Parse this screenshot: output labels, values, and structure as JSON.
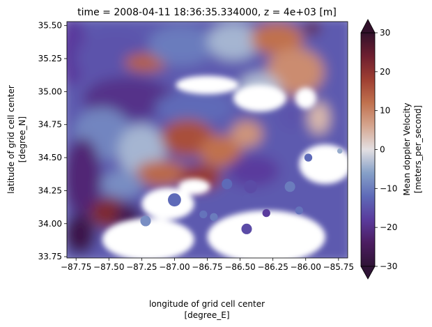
{
  "chart_data": {
    "type": "heatmap",
    "title": "time = 2008-04-11 18:36:35.334000, z = 4e+03 [m]",
    "xlabel": [
      "longitude of grid cell center",
      "[degree_E]"
    ],
    "ylabel": [
      "latitude of grid cell center",
      "[degree_N]"
    ],
    "colorbar_label": [
      "Mean doppler Velocity",
      "[meters_per_second]"
    ],
    "xlim": [
      -87.82,
      -85.68
    ],
    "ylim": [
      33.74,
      35.53
    ],
    "clim": [
      -30,
      30
    ],
    "colorbar_extend": "both",
    "colormap": "twilight_shifted",
    "colormap_stops": [
      {
        "v": -30,
        "color": "#2f1436"
      },
      {
        "v": -24,
        "color": "#4c1d61"
      },
      {
        "v": -18,
        "color": "#5a3b9d"
      },
      {
        "v": -12,
        "color": "#5e6ab8"
      },
      {
        "v": -6,
        "color": "#86a0c8"
      },
      {
        "v": 0,
        "color": "#e3dfe2"
      },
      {
        "v": 6,
        "color": "#d5a690"
      },
      {
        "v": 12,
        "color": "#c0714e"
      },
      {
        "v": 18,
        "color": "#9e3f32"
      },
      {
        "v": 24,
        "color": "#6e1f30"
      },
      {
        "v": 30,
        "color": "#32112b"
      }
    ],
    "xticks": [
      {
        "value": -87.75,
        "label": "−87.75"
      },
      {
        "value": -87.5,
        "label": "−87.50"
      },
      {
        "value": -87.25,
        "label": "−87.25"
      },
      {
        "value": -87.0,
        "label": "−87.00"
      },
      {
        "value": -86.75,
        "label": "−86.75"
      },
      {
        "value": -86.5,
        "label": "−86.50"
      },
      {
        "value": -86.25,
        "label": "−86.25"
      },
      {
        "value": -86.0,
        "label": "−86.00"
      },
      {
        "value": -85.75,
        "label": "−85.75"
      }
    ],
    "yticks": [
      {
        "value": 33.75,
        "label": "33.75"
      },
      {
        "value": 34.0,
        "label": "34.00"
      },
      {
        "value": 34.25,
        "label": "34.25"
      },
      {
        "value": 34.5,
        "label": "34.50"
      },
      {
        "value": 34.75,
        "label": "34.75"
      },
      {
        "value": 35.0,
        "label": "35.00"
      },
      {
        "value": 35.25,
        "label": "35.25"
      },
      {
        "value": 35.5,
        "label": "35.50"
      }
    ],
    "cbar_ticks": [
      {
        "value": 30,
        "label": "30"
      },
      {
        "value": 20,
        "label": "20"
      },
      {
        "value": 10,
        "label": "10"
      },
      {
        "value": 0,
        "label": "0"
      },
      {
        "value": -10,
        "label": "−10"
      },
      {
        "value": -20,
        "label": "−20"
      },
      {
        "value": -30,
        "label": "−30"
      }
    ],
    "grid": false,
    "field_regions_note_free": true,
    "regions": [
      {
        "lon": -87.78,
        "lat": 35.3,
        "rx": 0.12,
        "ry": 0.26,
        "value": -18
      },
      {
        "lon": -87.45,
        "lat": 35.25,
        "rx": 0.3,
        "ry": 0.22,
        "value": -15
      },
      {
        "lon": -87.22,
        "lat": 35.22,
        "rx": 0.16,
        "ry": 0.07,
        "value": 14
      },
      {
        "lon": -86.95,
        "lat": 35.35,
        "rx": 0.25,
        "ry": 0.15,
        "value": -10
      },
      {
        "lon": -86.55,
        "lat": 35.38,
        "rx": 0.2,
        "ry": 0.14,
        "value": -4
      },
      {
        "lon": -86.22,
        "lat": 35.4,
        "rx": 0.2,
        "ry": 0.12,
        "value": 12
      },
      {
        "lon": -86.08,
        "lat": 35.15,
        "rx": 0.22,
        "ry": 0.18,
        "value": 9
      },
      {
        "lon": -85.95,
        "lat": 35.48,
        "rx": 0.06,
        "ry": 0.05,
        "value": 25
      },
      {
        "lon": -86.35,
        "lat": 35.02,
        "rx": 0.16,
        "ry": 0.12,
        "value": -3
      },
      {
        "lon": -87.35,
        "lat": 34.95,
        "rx": 0.35,
        "ry": 0.16,
        "value": -20
      },
      {
        "lon": -86.85,
        "lat": 34.88,
        "rx": 0.3,
        "ry": 0.12,
        "value": -12
      },
      {
        "lon": -87.55,
        "lat": 34.68,
        "rx": 0.22,
        "ry": 0.2,
        "value": -9
      },
      {
        "lon": -87.25,
        "lat": 34.55,
        "rx": 0.18,
        "ry": 0.2,
        "value": -4
      },
      {
        "lon": -86.9,
        "lat": 34.65,
        "rx": 0.2,
        "ry": 0.14,
        "value": 16
      },
      {
        "lon": -86.65,
        "lat": 34.55,
        "rx": 0.16,
        "ry": 0.12,
        "value": 12
      },
      {
        "lon": -86.45,
        "lat": 34.68,
        "rx": 0.12,
        "ry": 0.1,
        "value": 8
      },
      {
        "lon": -87.1,
        "lat": 34.38,
        "rx": 0.2,
        "ry": 0.1,
        "value": 13
      },
      {
        "lon": -86.8,
        "lat": 34.35,
        "rx": 0.16,
        "ry": 0.1,
        "value": 19
      },
      {
        "lon": -86.4,
        "lat": 34.4,
        "rx": 0.2,
        "ry": 0.12,
        "value": -18
      },
      {
        "lon": -86.6,
        "lat": 34.22,
        "rx": 0.12,
        "ry": 0.08,
        "value": -14
      },
      {
        "lon": -87.7,
        "lat": 34.35,
        "rx": 0.14,
        "ry": 0.3,
        "value": -22
      },
      {
        "lon": -87.4,
        "lat": 34.3,
        "rx": 0.16,
        "ry": 0.1,
        "value": -8
      },
      {
        "lon": -87.5,
        "lat": 34.08,
        "rx": 0.14,
        "ry": 0.12,
        "value": 22
      },
      {
        "lon": -87.72,
        "lat": 33.92,
        "rx": 0.12,
        "ry": 0.15,
        "value": -27
      },
      {
        "lon": -87.35,
        "lat": 34.05,
        "rx": 0.1,
        "ry": 0.1,
        "value": -26
      },
      {
        "lon": -86.1,
        "lat": 34.82,
        "rx": 0.1,
        "ry": 0.1,
        "value": -15
      },
      {
        "lon": -85.9,
        "lat": 34.8,
        "rx": 0.08,
        "ry": 0.12,
        "value": 4
      }
    ],
    "masked_regions": [
      {
        "lon": -86.35,
        "lat": 34.95,
        "rx": 0.2,
        "ry": 0.1
      },
      {
        "lon": -86.75,
        "lat": 35.05,
        "rx": 0.24,
        "ry": 0.07
      },
      {
        "lon": -86.0,
        "lat": 34.95,
        "rx": 0.08,
        "ry": 0.08
      },
      {
        "lon": -85.85,
        "lat": 34.45,
        "rx": 0.2,
        "ry": 0.15
      },
      {
        "lon": -86.85,
        "lat": 34.28,
        "rx": 0.12,
        "ry": 0.06
      },
      {
        "lon": -87.05,
        "lat": 34.15,
        "rx": 0.2,
        "ry": 0.12
      },
      {
        "lon": -86.3,
        "lat": 33.9,
        "rx": 0.45,
        "ry": 0.2
      },
      {
        "lon": -87.2,
        "lat": 33.88,
        "rx": 0.35,
        "ry": 0.16
      }
    ],
    "isolated_cells": [
      {
        "lon": -86.0,
        "lat": 34.2,
        "r": 0.05,
        "value": -14
      },
      {
        "lon": -86.12,
        "lat": 34.28,
        "r": 0.04,
        "value": -10
      },
      {
        "lon": -86.42,
        "lat": 34.28,
        "r": 0.05,
        "value": -16
      },
      {
        "lon": -86.6,
        "lat": 34.3,
        "r": 0.04,
        "value": -12
      },
      {
        "lon": -86.45,
        "lat": 34.18,
        "r": 0.04,
        "value": -14
      },
      {
        "lon": -86.05,
        "lat": 34.1,
        "r": 0.03,
        "value": -11
      },
      {
        "lon": -87.0,
        "lat": 34.18,
        "r": 0.05,
        "value": -12
      },
      {
        "lon": -87.22,
        "lat": 34.02,
        "r": 0.04,
        "value": -8
      },
      {
        "lon": -86.7,
        "lat": 34.05,
        "r": 0.03,
        "value": -10
      },
      {
        "lon": -86.45,
        "lat": 33.96,
        "r": 0.04,
        "value": -16
      },
      {
        "lon": -85.98,
        "lat": 34.5,
        "r": 0.03,
        "value": -12
      },
      {
        "lon": -86.78,
        "lat": 34.07,
        "r": 0.03,
        "value": -11
      },
      {
        "lon": -86.3,
        "lat": 34.08,
        "r": 0.03,
        "value": -18
      },
      {
        "lon": -85.74,
        "lat": 34.55,
        "r": 0.02,
        "value": -5
      }
    ],
    "field_base_value": -14
  }
}
